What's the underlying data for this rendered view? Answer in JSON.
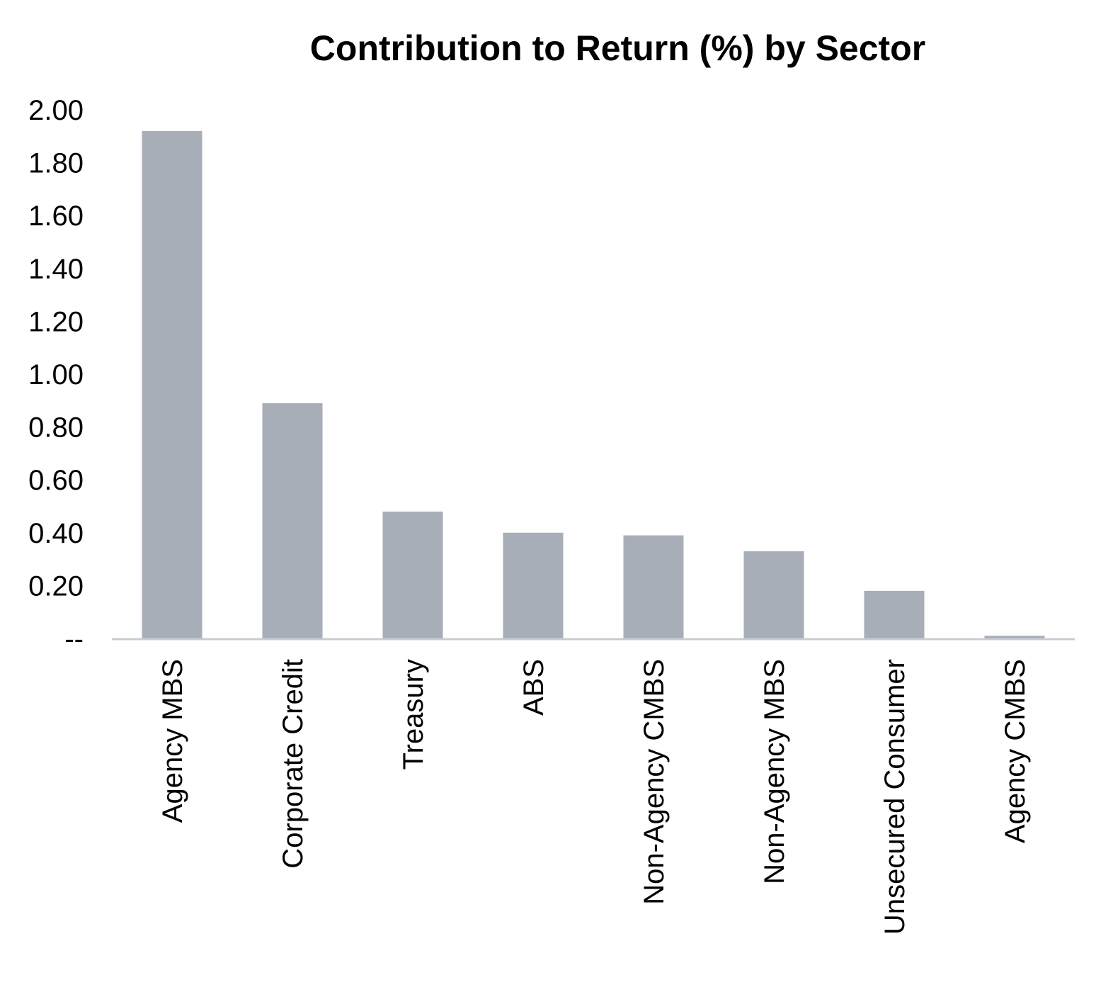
{
  "chart_data": {
    "type": "bar",
    "title": "Contribution to Return (%) by Sector",
    "xlabel": "",
    "ylabel": "",
    "categories": [
      "Agency MBS",
      "Corporate Credit",
      "Treasury",
      "ABS",
      "Non-Agency CMBS",
      "Non-Agency MBS",
      "Unsecured Consumer",
      "Agency CMBS"
    ],
    "values": [
      1.92,
      0.89,
      0.48,
      0.4,
      0.39,
      0.33,
      0.18,
      0.01
    ],
    "ylim": [
      0,
      2.0
    ],
    "y_ticks": [
      0,
      0.2,
      0.4,
      0.6,
      0.8,
      1.0,
      1.2,
      1.4,
      1.6,
      1.8,
      2.0
    ],
    "y_tick_labels": [
      "--",
      "0.20",
      "0.40",
      "0.60",
      "0.80",
      "1.00",
      "1.20",
      "1.40",
      "1.60",
      "1.80",
      "2.00"
    ],
    "grid": false,
    "legend": "none",
    "bar_color": "#a8aeb8",
    "axis_color": "#c8ccd2"
  }
}
